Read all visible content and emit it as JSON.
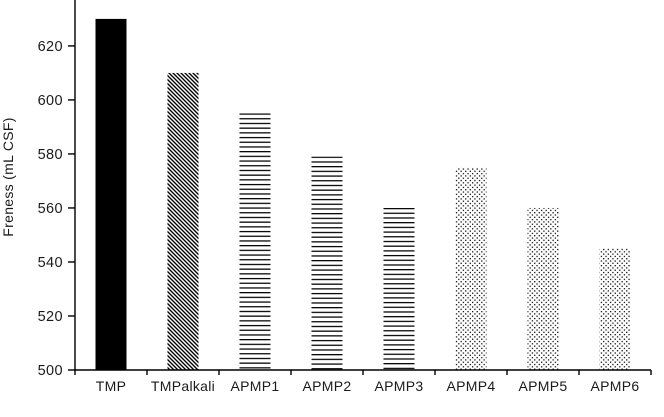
{
  "chart_data": {
    "type": "bar",
    "title": "",
    "xlabel": "",
    "ylabel": "Freness (mL CSF)",
    "categories": [
      "TMP",
      "TMPalkali",
      "APMP1",
      "APMP2",
      "APMP3",
      "APMP4",
      "APMP5",
      "APMP6"
    ],
    "values": [
      630,
      610,
      595,
      579,
      560,
      575,
      560,
      545
    ],
    "bar_patterns": [
      "solid",
      "diagonal-hatch",
      "horizontal-lines",
      "horizontal-lines",
      "horizontal-lines",
      "dots",
      "dots",
      "dots"
    ],
    "yticks": [
      500,
      520,
      540,
      560,
      580,
      600,
      620
    ],
    "ylim": [
      500,
      637
    ],
    "grid": false,
    "legend": false,
    "bar_color": "#000000",
    "background_color": "#ffffff",
    "axis_color": "#000000",
    "text_color": "#1a1a1a"
  }
}
